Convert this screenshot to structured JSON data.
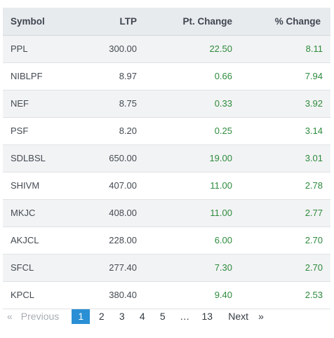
{
  "table": {
    "headers": {
      "symbol": "Symbol",
      "ltp": "LTP",
      "pt_change": "Pt. Change",
      "pct_change": "% Change"
    },
    "rows": [
      {
        "symbol": "PPL",
        "ltp": "300.00",
        "pt_change": "22.50",
        "pct_change": "8.11"
      },
      {
        "symbol": "NIBLPF",
        "ltp": "8.97",
        "pt_change": "0.66",
        "pct_change": "7.94"
      },
      {
        "symbol": "NEF",
        "ltp": "8.75",
        "pt_change": "0.33",
        "pct_change": "3.92"
      },
      {
        "symbol": "PSF",
        "ltp": "8.20",
        "pt_change": "0.25",
        "pct_change": "3.14"
      },
      {
        "symbol": "SDLBSL",
        "ltp": "650.00",
        "pt_change": "19.00",
        "pct_change": "3.01"
      },
      {
        "symbol": "SHIVM",
        "ltp": "407.00",
        "pt_change": "11.00",
        "pct_change": "2.78"
      },
      {
        "symbol": "MKJC",
        "ltp": "408.00",
        "pt_change": "11.00",
        "pct_change": "2.77"
      },
      {
        "symbol": "AKJCL",
        "ltp": "228.00",
        "pt_change": "6.00",
        "pct_change": "2.70"
      },
      {
        "symbol": "SFCL",
        "ltp": "277.40",
        "pt_change": "7.30",
        "pct_change": "2.70"
      },
      {
        "symbol": "KPCL",
        "ltp": "380.40",
        "pt_change": "9.40",
        "pct_change": "2.53"
      }
    ]
  },
  "pagination": {
    "prev_arrow": "«",
    "prev_label": "Previous",
    "pages": [
      "1",
      "2",
      "3",
      "4",
      "5"
    ],
    "ellipsis": "…",
    "last_page": "13",
    "next_label": "Next",
    "next_arrow": "»",
    "current_page": "1"
  },
  "colors": {
    "positive": "#2e8b3d",
    "active_page": "#2a8fd4",
    "header_bg": "#e8ebee"
  }
}
